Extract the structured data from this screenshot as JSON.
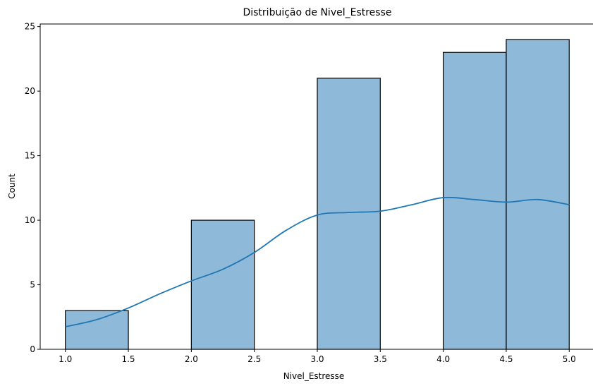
{
  "chart_data": {
    "type": "bar",
    "title": "Distribuição de Nivel_Estresse",
    "xlabel": "Nivel_Estresse",
    "ylabel": "Count",
    "bins": [
      {
        "start": 1.0,
        "end": 1.5,
        "count": 3
      },
      {
        "start": 1.5,
        "end": 2.0,
        "count": 0
      },
      {
        "start": 2.0,
        "end": 2.5,
        "count": 10
      },
      {
        "start": 2.5,
        "end": 3.0,
        "count": 0
      },
      {
        "start": 3.0,
        "end": 3.5,
        "count": 21
      },
      {
        "start": 3.5,
        "end": 4.0,
        "count": 0
      },
      {
        "start": 4.0,
        "end": 4.5,
        "count": 23
      },
      {
        "start": 4.5,
        "end": 5.0,
        "count": 24
      }
    ],
    "kde": [
      [
        1.0,
        1.75
      ],
      [
        1.25,
        2.3
      ],
      [
        1.5,
        3.2
      ],
      [
        1.75,
        4.3
      ],
      [
        2.0,
        5.3
      ],
      [
        2.25,
        6.2
      ],
      [
        2.5,
        7.5
      ],
      [
        2.75,
        9.2
      ],
      [
        3.0,
        10.4
      ],
      [
        3.25,
        10.6
      ],
      [
        3.5,
        10.7
      ],
      [
        3.75,
        11.2
      ],
      [
        4.0,
        11.75
      ],
      [
        4.25,
        11.6
      ],
      [
        4.5,
        11.4
      ],
      [
        4.75,
        11.6
      ],
      [
        5.0,
        11.2
      ]
    ],
    "xlim": [
      0.8,
      5.2
    ],
    "ylim": [
      0,
      25.2
    ],
    "xticks": [
      "1.0",
      "1.5",
      "2.0",
      "2.5",
      "3.0",
      "3.5",
      "4.0",
      "4.5",
      "5.0"
    ],
    "yticks": [
      "0",
      "5",
      "10",
      "15",
      "20",
      "25"
    ],
    "grid": false,
    "colors": {
      "bar_fill": "#8fb9d9",
      "bar_edge": "#000000",
      "kde_line": "#1f77b4"
    }
  }
}
